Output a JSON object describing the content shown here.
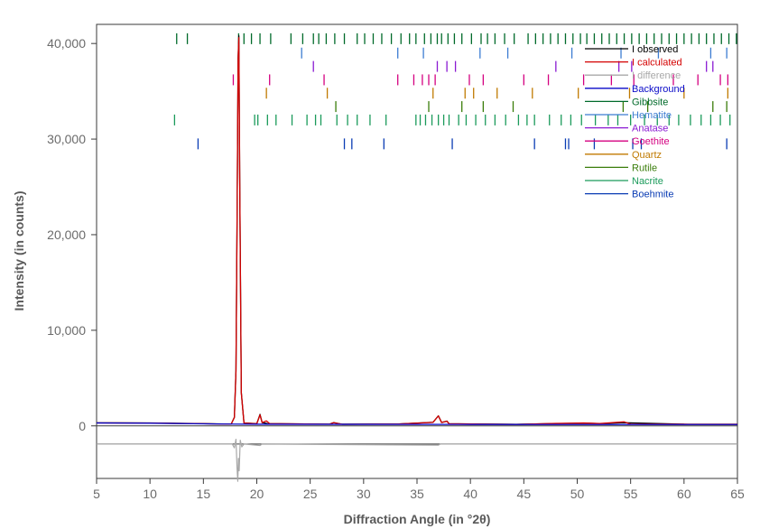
{
  "chart_data": {
    "type": "line",
    "xlabel": "Diffraction Angle (in °2θ)",
    "ylabel": "Intensity (in counts)",
    "xlim": [
      5,
      65
    ],
    "ylim": [
      -5500,
      42000
    ],
    "x_ticks": [
      5,
      10,
      15,
      20,
      25,
      30,
      35,
      40,
      45,
      50,
      55,
      60,
      65
    ],
    "x_tick_labels": [
      "5",
      "10",
      "15",
      "20",
      "25",
      "30",
      "35",
      "40",
      "45",
      "50",
      "55",
      "60",
      "65"
    ],
    "y_ticks": [
      0,
      10000,
      20000,
      30000,
      40000
    ],
    "y_tick_labels": [
      "0",
      "10,000",
      "20,000",
      "30,000",
      "40,000"
    ],
    "grid": false,
    "legend_position": "top-right",
    "difference_offset": -1900,
    "series": [
      {
        "name": "I observed",
        "color": "#000000",
        "kind": "curve",
        "points": [
          [
            5,
            320
          ],
          [
            10,
            300
          ],
          [
            15,
            230
          ],
          [
            17.6,
            180
          ],
          [
            17.9,
            900
          ],
          [
            18.05,
            5800
          ],
          [
            18.15,
            21000
          ],
          [
            18.25,
            38500
          ],
          [
            18.32,
            40800
          ],
          [
            18.4,
            26000
          ],
          [
            18.55,
            3500
          ],
          [
            18.8,
            300
          ],
          [
            20,
            230
          ],
          [
            20.3,
            1200
          ],
          [
            20.5,
            350
          ],
          [
            21,
            240
          ],
          [
            26.8,
            180
          ],
          [
            27.2,
            340
          ],
          [
            28,
            170
          ],
          [
            33.3,
            200
          ],
          [
            36.5,
            380
          ],
          [
            37,
            1050
          ],
          [
            37.3,
            360
          ],
          [
            37.8,
            500
          ],
          [
            38,
            220
          ],
          [
            44.3,
            160
          ],
          [
            50.6,
            290
          ],
          [
            52.1,
            240
          ],
          [
            54.4,
            330
          ],
          [
            60,
            170
          ],
          [
            65,
            160
          ]
        ]
      },
      {
        "name": "I calculated",
        "color": "#d40000",
        "kind": "curve",
        "points": [
          [
            5,
            310
          ],
          [
            10,
            290
          ],
          [
            15,
            225
          ],
          [
            17.6,
            175
          ],
          [
            17.9,
            880
          ],
          [
            18.05,
            5700
          ],
          [
            18.15,
            20800
          ],
          [
            18.25,
            38300
          ],
          [
            18.32,
            40600
          ],
          [
            18.4,
            25800
          ],
          [
            18.55,
            3450
          ],
          [
            18.8,
            290
          ],
          [
            20,
            225
          ],
          [
            20.3,
            1150
          ],
          [
            20.5,
            340
          ],
          [
            20.9,
            520
          ],
          [
            21.2,
            240
          ],
          [
            26.8,
            175
          ],
          [
            27.2,
            330
          ],
          [
            28,
            165
          ],
          [
            33.3,
            195
          ],
          [
            36.5,
            370
          ],
          [
            37,
            1040
          ],
          [
            37.3,
            350
          ],
          [
            37.8,
            490
          ],
          [
            38,
            215
          ],
          [
            44.3,
            155
          ],
          [
            48,
            260
          ],
          [
            50.6,
            300
          ],
          [
            52.1,
            250
          ],
          [
            54.4,
            420
          ],
          [
            55,
            180
          ],
          [
            60,
            170
          ],
          [
            65,
            160
          ]
        ]
      },
      {
        "name": "I difference",
        "color": "#a8a8a8",
        "kind": "difference",
        "points": [
          [
            5,
            0
          ],
          [
            17.7,
            0
          ],
          [
            17.9,
            -400
          ],
          [
            18.05,
            500
          ],
          [
            18.15,
            -2500
          ],
          [
            18.22,
            -3900
          ],
          [
            18.28,
            -1500
          ],
          [
            18.35,
            -2800
          ],
          [
            18.45,
            400
          ],
          [
            18.6,
            -300
          ],
          [
            18.8,
            0
          ],
          [
            20.3,
            -150
          ],
          [
            20.5,
            0
          ],
          [
            37,
            -120
          ],
          [
            37.2,
            0
          ],
          [
            65,
            0
          ]
        ]
      },
      {
        "name": "Background",
        "color": "#0a0ac8",
        "kind": "curve",
        "points": [
          [
            5,
            300
          ],
          [
            10,
            280
          ],
          [
            15,
            210
          ],
          [
            20,
            170
          ],
          [
            30,
            160
          ],
          [
            40,
            150
          ],
          [
            50,
            145
          ],
          [
            65,
            140
          ]
        ]
      },
      {
        "name": "Gibbsite",
        "color": "#006a2a",
        "kind": "ticks",
        "tick_y": 40500,
        "positions": [
          12.5,
          13.5,
          18.3,
          18.8,
          19.5,
          20.3,
          21.3,
          23.2,
          24.3,
          25.3,
          25.8,
          26.5,
          27.3,
          28.2,
          29.4,
          30.1,
          30.9,
          31.7,
          32.6,
          33.5,
          34.3,
          34.9,
          35.7,
          36.3,
          36.9,
          37.3,
          37.9,
          38.5,
          39.2,
          40.1,
          41,
          41.6,
          42.3,
          43.2,
          44.1,
          45.4,
          46.1,
          46.8,
          47.5,
          48.2,
          48.9,
          49.6,
          50.3,
          50.9,
          51.6,
          52.3,
          53,
          53.7,
          54.4,
          55.1,
          55.8,
          56.5,
          57.2,
          57.9,
          58.6,
          59.3,
          60,
          60.7,
          61.4,
          62.1,
          62.8,
          63.5,
          64.2,
          64.9
        ]
      },
      {
        "name": "Hematite",
        "color": "#3c7cd2",
        "kind": "ticks",
        "tick_y": 39000,
        "positions": [
          24.2,
          33.2,
          35.6,
          40.9,
          43.5,
          49.5,
          54.1,
          57.6,
          62.5,
          64
        ]
      },
      {
        "name": "Anatase",
        "color": "#8a1ad2",
        "kind": "ticks",
        "tick_y": 37600,
        "positions": [
          25.3,
          36.9,
          37.8,
          38.6,
          48,
          53.9,
          55.1,
          62.1,
          62.7
        ]
      },
      {
        "name": "Goethite",
        "color": "#d40080",
        "kind": "ticks",
        "tick_y": 36200,
        "positions": [
          17.8,
          21.2,
          26.3,
          33.2,
          34.7,
          35.5,
          36.1,
          36.7,
          39.9,
          41.2,
          45,
          47.3,
          50.6,
          53.2,
          55.3,
          59,
          61.3,
          63.4,
          64.1
        ]
      },
      {
        "name": "Quartz",
        "color": "#c07a00",
        "kind": "ticks",
        "tick_y": 34800,
        "positions": [
          20.9,
          26.6,
          36.5,
          39.5,
          40.3,
          42.5,
          45.8,
          50.1,
          54.9,
          60,
          64.1
        ]
      },
      {
        "name": "Rutile",
        "color": "#3a7d0a",
        "kind": "ticks",
        "tick_y": 33400,
        "positions": [
          27.4,
          36.1,
          39.2,
          41.2,
          44,
          54.3,
          56.6,
          62.7,
          64
        ]
      },
      {
        "name": "Nacrite",
        "color": "#1a9a5a",
        "kind": "ticks",
        "tick_y": 32000,
        "positions": [
          12.3,
          19.8,
          20.1,
          21,
          21.8,
          23.3,
          24.7,
          25.5,
          26,
          27.5,
          28.5,
          29.4,
          30.6,
          32.1,
          34.9,
          35.3,
          35.8,
          36.4,
          37,
          37.5,
          38,
          38.9,
          39.6,
          40.5,
          41.4,
          42.3,
          43.3,
          44.5,
          45.3,
          46,
          47.4,
          48.5,
          49.4,
          50.4,
          51.7,
          52.9,
          53.8,
          55,
          56.3,
          57.5,
          58.6,
          59.5,
          60.6,
          61.6,
          62.5,
          63.4,
          64.3
        ]
      },
      {
        "name": "Boehmite",
        "color": "#0a3cb4",
        "kind": "ticks",
        "tick_y": 29500,
        "positions": [
          14.5,
          28.2,
          28.9,
          31.9,
          38.3,
          46,
          48.9,
          49.2,
          51.6,
          55.2,
          56,
          64
        ]
      }
    ]
  }
}
